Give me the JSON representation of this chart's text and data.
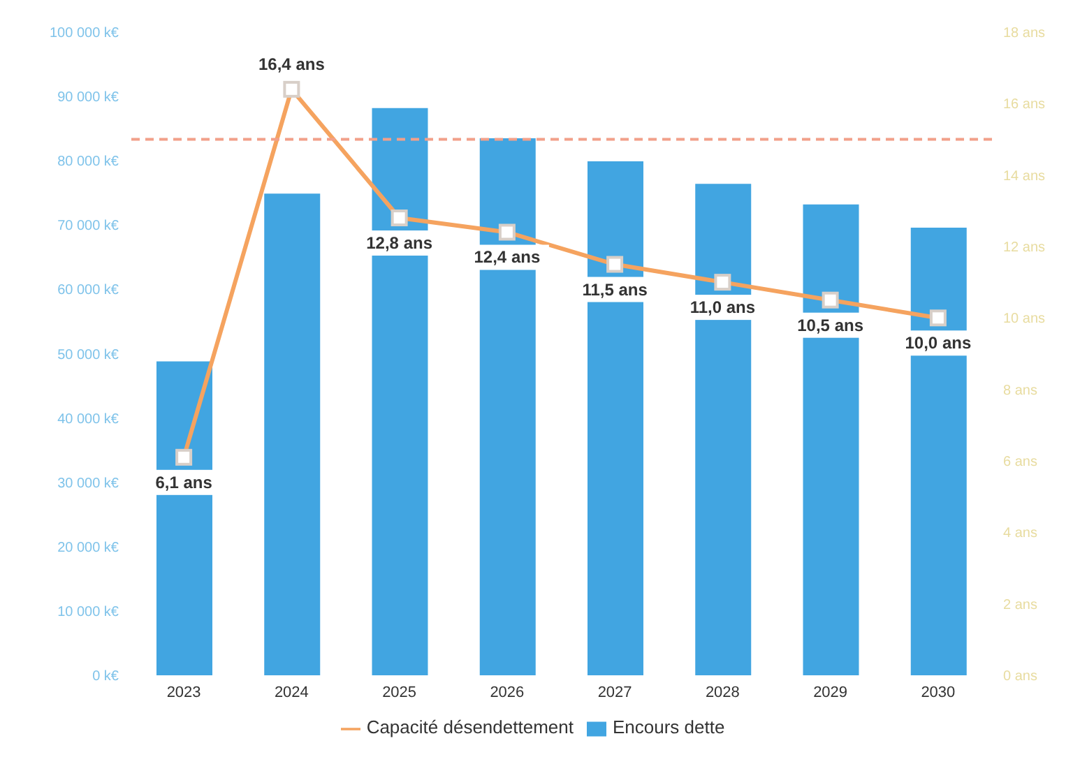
{
  "chart_data": {
    "type": "bar",
    "categories": [
      "2023",
      "2024",
      "2025",
      "2026",
      "2027",
      "2028",
      "2029",
      "2030"
    ],
    "series": [
      {
        "name": "Encours dette",
        "color": "#41a5e1",
        "values": [
          48800,
          74900,
          88200,
          83500,
          79900,
          76400,
          73200,
          69600
        ]
      },
      {
        "name": "Capacité désendettement",
        "type": "line",
        "axis": "y2",
        "color": "#f5a35f",
        "marker": "square",
        "values": [
          6.1,
          16.4,
          12.8,
          12.4,
          11.5,
          11.0,
          10.5,
          10.0
        ],
        "value_labels": [
          "6,1 ans",
          "16,4 ans",
          "12,8 ans",
          "12,4 ans",
          "11,5 ans",
          "11,0 ans",
          "10,5 ans",
          "10,0 ans"
        ]
      }
    ],
    "ylim": [
      0,
      100000
    ],
    "yticks": [
      {
        "value": 0,
        "label": "0 k€"
      },
      {
        "value": 10000,
        "label": "10 000 k€"
      },
      {
        "value": 20000,
        "label": "20 000 k€"
      },
      {
        "value": 30000,
        "label": "30 000 k€"
      },
      {
        "value": 40000,
        "label": "40 000 k€"
      },
      {
        "value": 50000,
        "label": "50 000 k€"
      },
      {
        "value": 60000,
        "label": "60 000 k€"
      },
      {
        "value": 70000,
        "label": "70 000 k€"
      },
      {
        "value": 80000,
        "label": "80 000 k€"
      },
      {
        "value": 90000,
        "label": "90 000 k€"
      },
      {
        "value": 100000,
        "label": "100 000 k€"
      }
    ],
    "y2lim": [
      0,
      18
    ],
    "y2ticks": [
      {
        "value": 0,
        "label": "0 ans"
      },
      {
        "value": 2,
        "label": "2 ans"
      },
      {
        "value": 4,
        "label": "4 ans"
      },
      {
        "value": 6,
        "label": "6 ans"
      },
      {
        "value": 8,
        "label": "8 ans"
      },
      {
        "value": 10,
        "label": "10 ans"
      },
      {
        "value": 12,
        "label": "12 ans"
      },
      {
        "value": 14,
        "label": "14 ans"
      },
      {
        "value": 16,
        "label": "16 ans"
      },
      {
        "value": 18,
        "label": "18 ans"
      }
    ],
    "ref_lines": [
      {
        "axis": "y2",
        "value": 15,
        "color": "#f2a08a",
        "line_style": "dashed"
      }
    ],
    "legend": "bottom"
  }
}
